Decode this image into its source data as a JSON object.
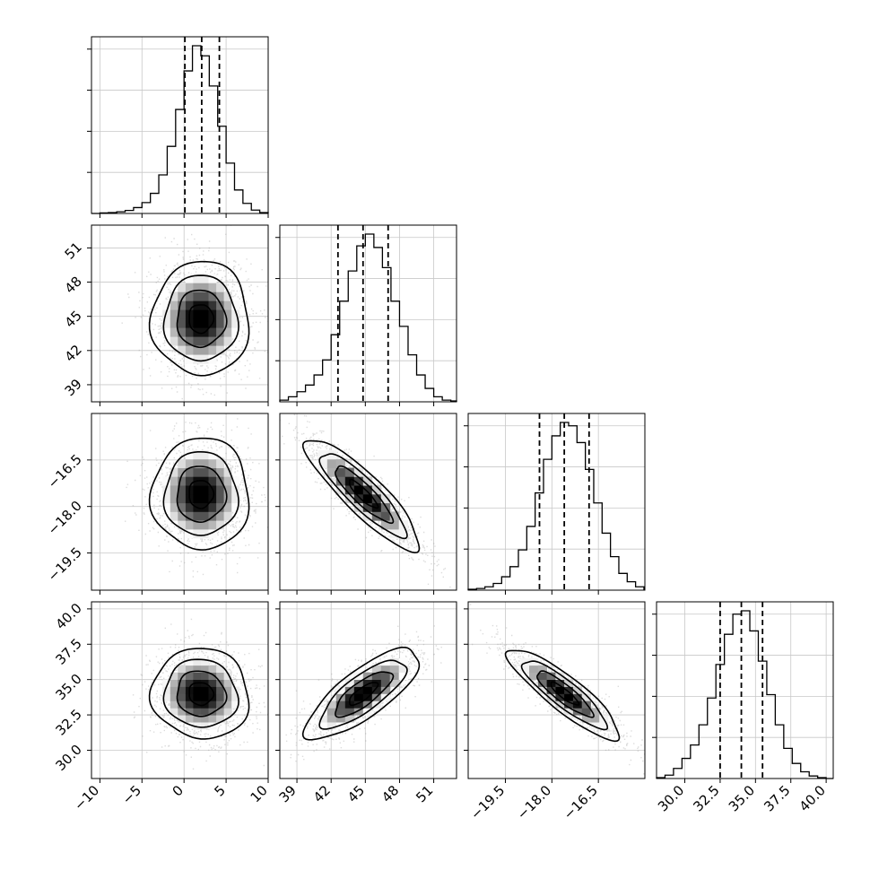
{
  "chart_data": {
    "type": "corner",
    "title": "",
    "parameters": [
      {
        "index": 0,
        "mean": 2.0,
        "sd": 2.9,
        "range": [
          -11,
          10
        ],
        "ticks": [
          -10,
          -5,
          0,
          5,
          10
        ],
        "tick_labels": [
          "−10",
          "−5",
          "0",
          "5",
          "10"
        ],
        "quantiles": [
          0.1,
          2.1,
          4.2
        ],
        "hist_bin_edges": [
          -11,
          -10,
          -9,
          -8,
          -7,
          -6,
          -5,
          -4,
          -3,
          -2,
          -1,
          0,
          1,
          2,
          3,
          4,
          5,
          6,
          7,
          8,
          9,
          10
        ],
        "hist_heights": [
          0,
          0.003,
          0.005,
          0.01,
          0.018,
          0.035,
          0.065,
          0.12,
          0.23,
          0.4,
          0.62,
          0.85,
          1.0,
          0.94,
          0.76,
          0.52,
          0.3,
          0.14,
          0.06,
          0.02,
          0.005
        ]
      },
      {
        "index": 1,
        "mean": 44.8,
        "sd": 2.5,
        "range": [
          37.5,
          53
        ],
        "ticks": [
          39,
          42,
          45,
          48,
          51
        ],
        "tick_labels": [
          "39",
          "42",
          "45",
          "48",
          "51"
        ],
        "quantiles": [
          42.6,
          44.8,
          47.0
        ],
        "hist_bin_edges": [
          37.5,
          38.25,
          39,
          39.75,
          40.5,
          41.25,
          42,
          42.75,
          43.5,
          44.25,
          45,
          45.75,
          46.5,
          47.25,
          48,
          48.75,
          49.5,
          50.25,
          51,
          51.75,
          52.5,
          53
        ],
        "hist_heights": [
          0.01,
          0.03,
          0.06,
          0.1,
          0.16,
          0.25,
          0.4,
          0.6,
          0.78,
          0.93,
          1.0,
          0.92,
          0.8,
          0.6,
          0.45,
          0.28,
          0.16,
          0.08,
          0.03,
          0.01,
          0.005
        ]
      },
      {
        "index": 2,
        "mean": -17.6,
        "sd": 0.9,
        "range": [
          -20.7,
          -15.0
        ],
        "ticks": [
          -19.5,
          -18.0,
          -16.5
        ],
        "tick_labels": [
          "−19.5",
          "−18.0",
          "−16.5"
        ],
        "quantiles": [
          -18.4,
          -17.6,
          -16.8
        ],
        "hist_bin_edges": [
          -20.7,
          -20.43,
          -20.16,
          -19.89,
          -19.62,
          -19.35,
          -19.08,
          -18.81,
          -18.54,
          -18.27,
          -18.0,
          -17.73,
          -17.46,
          -17.19,
          -16.92,
          -16.65,
          -16.38,
          -16.11,
          -15.84,
          -15.57,
          -15.3,
          -15.03
        ],
        "hist_heights": [
          0.005,
          0.01,
          0.02,
          0.04,
          0.08,
          0.14,
          0.24,
          0.38,
          0.58,
          0.78,
          0.92,
          1.0,
          0.98,
          0.88,
          0.72,
          0.52,
          0.34,
          0.2,
          0.1,
          0.05,
          0.02
        ]
      },
      {
        "index": 3,
        "mean": 34.0,
        "sd": 1.6,
        "range": [
          28.0,
          40.5
        ],
        "ticks": [
          30.0,
          32.5,
          35.0,
          37.5,
          40.0
        ],
        "tick_labels": [
          "30.0",
          "32.5",
          "35.0",
          "37.5",
          "40.0"
        ],
        "quantiles": [
          32.5,
          34.0,
          35.5
        ],
        "hist_bin_edges": [
          28.0,
          28.6,
          29.2,
          29.8,
          30.4,
          31.0,
          31.6,
          32.2,
          32.8,
          33.4,
          34.0,
          34.6,
          35.2,
          35.8,
          36.4,
          37.0,
          37.6,
          38.2,
          38.8,
          39.4,
          40.0,
          40.5
        ],
        "hist_heights": [
          0.005,
          0.02,
          0.06,
          0.12,
          0.2,
          0.32,
          0.48,
          0.68,
          0.86,
          0.98,
          1.0,
          0.88,
          0.7,
          0.5,
          0.32,
          0.18,
          0.09,
          0.04,
          0.015,
          0.005,
          0.0
        ]
      }
    ],
    "correlations": [
      {
        "row": 1,
        "col": 0,
        "rho": 0.0
      },
      {
        "row": 2,
        "col": 0,
        "rho": 0.0
      },
      {
        "row": 2,
        "col": 1,
        "rho": -0.88
      },
      {
        "row": 3,
        "col": 0,
        "rho": -0.05
      },
      {
        "row": 3,
        "col": 1,
        "rho": 0.78
      },
      {
        "row": 3,
        "col": 2,
        "rho": -0.88
      }
    ],
    "contour_levels_sigma": [
      0.5,
      1.0,
      1.5,
      2.0
    ],
    "grid": true,
    "legend": "none"
  }
}
